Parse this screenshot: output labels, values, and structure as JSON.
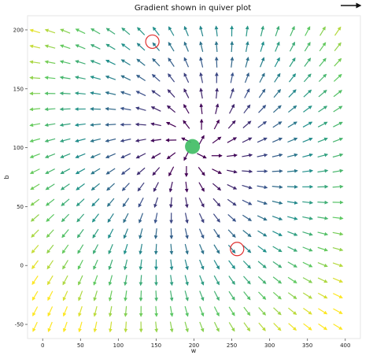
{
  "chart_data": {
    "type": "quiver",
    "title": "Gradient shown in quiver plot",
    "xlabel": "w",
    "ylabel": "b",
    "xlim": [
      -20,
      420
    ],
    "ylim": [
      -62,
      212
    ],
    "x_ticks": [
      0,
      50,
      100,
      150,
      200,
      250,
      300,
      350,
      400
    ],
    "y_ticks": [
      -50,
      0,
      50,
      100,
      150,
      200
    ],
    "grid": false,
    "grid_x": {
      "start": -10,
      "stop": 405,
      "step": 20.0
    },
    "grid_y": {
      "start": -52,
      "stop": 200,
      "step": 13.2
    },
    "center": {
      "w": 200,
      "b": 100
    },
    "colormap": "viridis",
    "markers": [
      {
        "type": "filled-circle",
        "w": 198,
        "b": 101,
        "color": "#3dbb62"
      },
      {
        "type": "ring",
        "w": 145,
        "b": 190,
        "color": "#e03030"
      },
      {
        "type": "ring",
        "w": 257,
        "b": 14,
        "color": "#e03030"
      }
    ],
    "key_arrow": {
      "color": "#111111"
    }
  }
}
